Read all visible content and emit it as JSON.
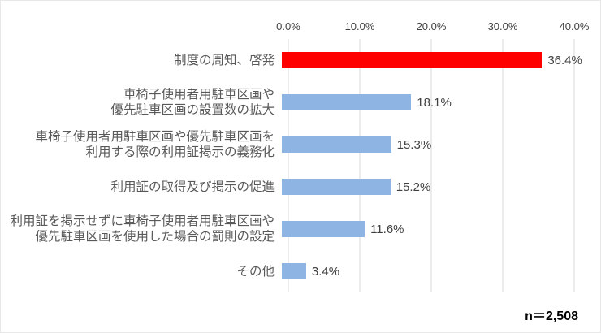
{
  "chart_data": {
    "type": "bar",
    "orientation": "horizontal",
    "title": "",
    "categories": [
      "制度の周知、啓発",
      "車椅子使用者用駐車区画や\n優先駐車区画の設置数の拡大",
      "車椅子使用者用駐車区画や優先駐車区画を\n利用する際の利用証掲示の義務化",
      "利用証の取得及び掲示の促進",
      "利用証を掲示せずに車椅子使用者用駐車区画や\n優先駐車区画を使用した場合の罰則の設定",
      "その他"
    ],
    "values": [
      36.4,
      18.1,
      15.3,
      15.2,
      11.6,
      3.4
    ],
    "value_labels": [
      "36.4%",
      "18.1%",
      "15.3%",
      "15.2%",
      "11.6%",
      "3.4%"
    ],
    "bar_colors": [
      "#FF0000",
      "#8DB4E2",
      "#8DB4E2",
      "#8DB4E2",
      "#8DB4E2",
      "#8DB4E2"
    ],
    "x_axis": {
      "position": "top",
      "tick_labels": [
        "0.0%",
        "10.0%",
        "20.0%",
        "30.0%",
        "40.0%"
      ],
      "min": 0,
      "max": 40
    },
    "grid": true,
    "legend": false,
    "annotation": "n＝2,508"
  },
  "colors": {
    "highlight_bar": "#FF0000",
    "default_bar": "#8DB4E2",
    "gridline": "#D9D9D9",
    "axis_label": "#404040",
    "category_label": "#595959",
    "value_label": "#404040",
    "annotation_text": "#000000",
    "background": "#FFFFFF"
  }
}
